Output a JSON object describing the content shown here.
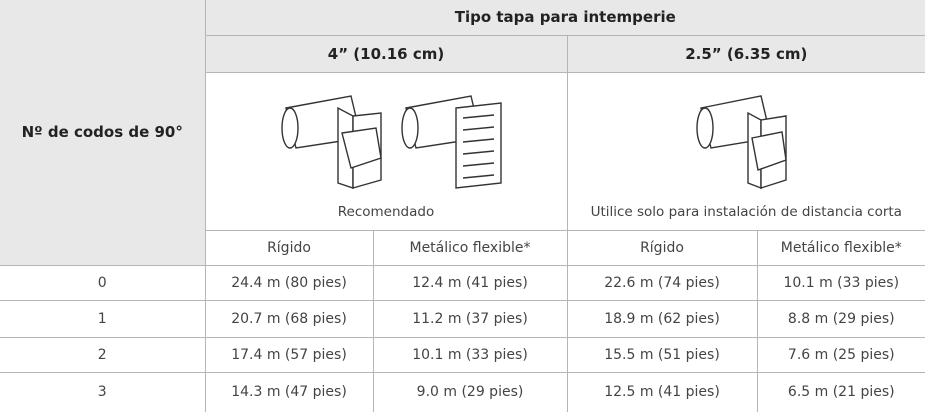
{
  "table": {
    "row_header": "Nº de codos de 90°",
    "group_header": "Tipo tapa para intemperie",
    "sizes": [
      "4” (10.16 cm)",
      "2.5” (6.35 cm)"
    ],
    "captions": [
      "Recomendado",
      "Utilice solo para instalación de distancia corta"
    ],
    "columns": [
      "Rígido",
      "Metálico flexible*",
      "Rígido",
      "Metálico flexible*"
    ],
    "rows": [
      [
        "0",
        "24.4 m (80 pies)",
        "12.4 m (41 pies)",
        "22.6 m (74 pies)",
        "10.1 m (33 pies)"
      ],
      [
        "1",
        "20.7 m (68 pies)",
        "11.2 m (37 pies)",
        "18.9 m (62 pies)",
        "8.8 m (29 pies)"
      ],
      [
        "2",
        "17.4 m (57 pies)",
        "10.1 m (33 pies)",
        "15.5 m (51 pies)",
        "7.6 m (25 pies)"
      ],
      [
        "3",
        "14.3 m (47 pies)",
        "9.0 m (29 pies)",
        "12.5 m (41 pies)",
        "6.5 m (21 pies)"
      ]
    ]
  }
}
